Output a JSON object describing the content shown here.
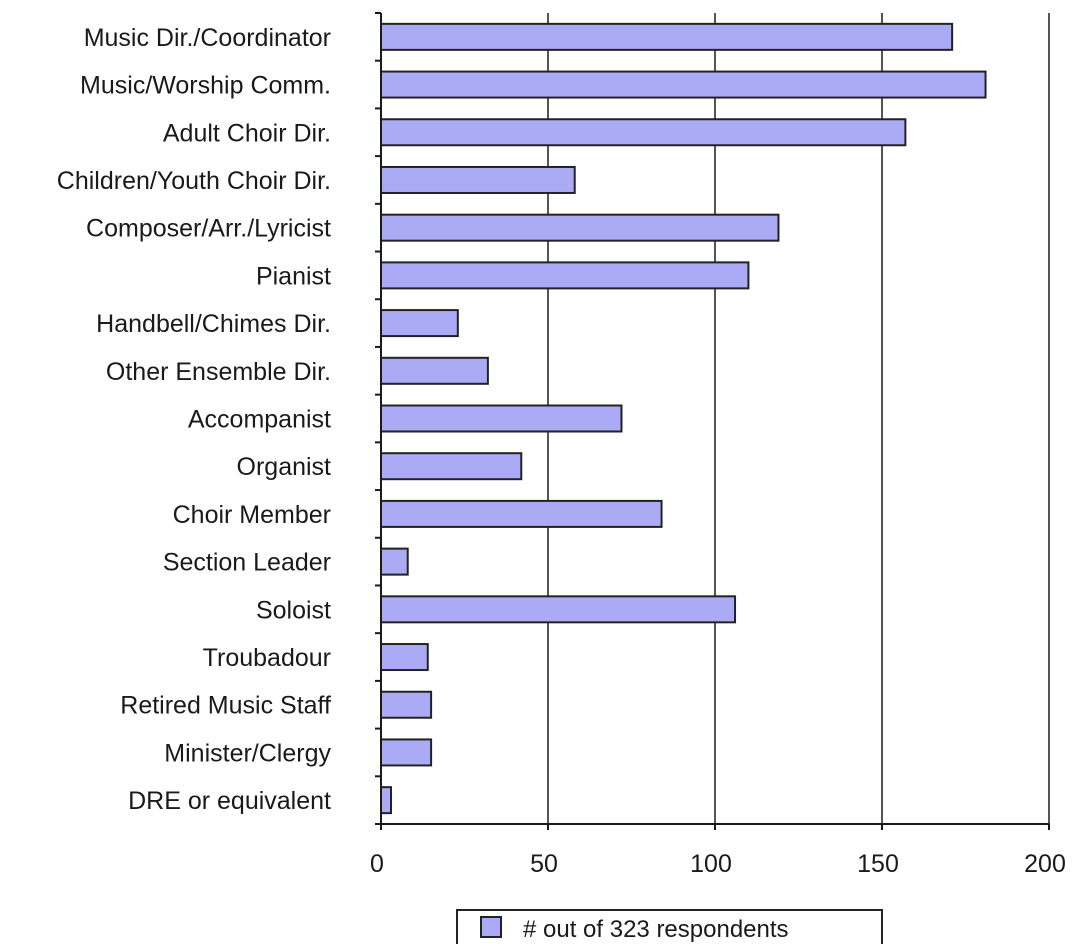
{
  "chart_data": {
    "type": "bar",
    "orientation": "horizontal",
    "categories": [
      "Music Dir./Coordinator",
      "Music/Worship Comm.",
      "Adult Choir Dir.",
      "Children/Youth Choir Dir.",
      "Composer/Arr./Lyricist",
      "Pianist",
      "Handbell/Chimes Dir.",
      "Other Ensemble Dir.",
      "Accompanist",
      "Organist",
      "Choir Member",
      "Section Leader",
      "Soloist",
      "Troubadour",
      "Retired Music Staff",
      "Minister/Clergy",
      "DRE or equivalent"
    ],
    "series": [
      {
        "name": "# out of 323 respondents",
        "values": [
          171,
          181,
          157,
          58,
          119,
          110,
          23,
          32,
          72,
          42,
          84,
          8,
          106,
          14,
          15,
          15,
          3
        ]
      }
    ],
    "xlim": [
      0,
      200
    ],
    "xticks": [
      0,
      50,
      100,
      150,
      200
    ],
    "xtick_labels": [
      "0",
      "50",
      "100",
      "150",
      "200"
    ],
    "grid": "vertical",
    "legend_position": "bottom",
    "colors": {
      "bar_fill": "#aaaaf5",
      "bar_stroke": "#222222",
      "grid": "#555555",
      "axis": "#1a1a1a"
    }
  }
}
